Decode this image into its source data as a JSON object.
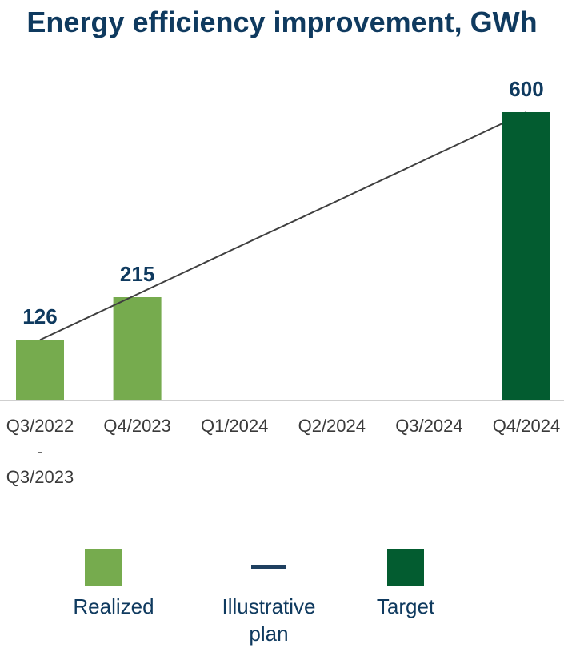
{
  "chart_data": {
    "type": "bar",
    "title": "Energy efficiency improvement, GWh",
    "categories": [
      "Q3/2022\n-\nQ3/2023",
      "Q4/2023",
      "Q1/2024",
      "Q2/2024",
      "Q3/2024",
      "Q4/2024"
    ],
    "series": [
      {
        "name": "Realized",
        "type": "bar",
        "color": "#76ab4e",
        "values": [
          126,
          215,
          null,
          null,
          null,
          null
        ]
      },
      {
        "name": "Illustrative plan",
        "type": "line",
        "color": "#3f3f3f",
        "values": [
          126,
          221,
          316,
          410,
          505,
          600
        ]
      },
      {
        "name": "Target",
        "type": "bar",
        "color": "#035c30",
        "values": [
          null,
          null,
          null,
          null,
          null,
          600
        ]
      }
    ],
    "ylim": [
      0,
      600
    ],
    "grid": false
  }
}
